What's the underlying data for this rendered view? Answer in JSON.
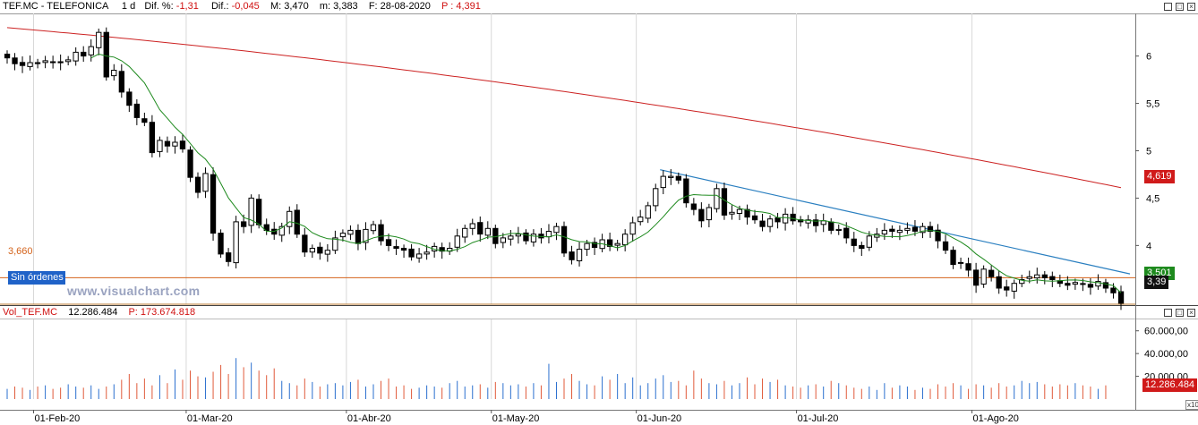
{
  "header": {
    "symbol": "TEF.MC - TELEFONICA",
    "period": "1 d",
    "dif_pct_label": "Dif. %:",
    "dif_pct_value": "-1,31",
    "dif_label": "Dif.:",
    "dif_value": "-0,045",
    "max_label": "M: 3,470",
    "min_label": "m: 3,383",
    "date_label": "F: 28-08-2020",
    "p_label": "P : 4,391"
  },
  "volume_header": {
    "name": "Vol_TEF.MC",
    "value": "12.286.484",
    "p_label": "P: 173.674.818"
  },
  "orders_label": "Sin órdenes",
  "watermark": "www.visualchart.com",
  "level_label": "3,660",
  "price_tags": {
    "ma200": "4,619",
    "ma20": "3,501",
    "last": "3,39",
    "volume": "12.286.484"
  },
  "volume_scale_label": "x10",
  "colors": {
    "ma200": "#cc2222",
    "ma20": "#1e8a1e",
    "trendline": "#2a7fc0",
    "level": "#d4621a",
    "vol_up": "#2a6fcf",
    "vol_down": "#e05a3a"
  },
  "chart_data": [
    {
      "type": "candlestick",
      "title": "TEF.MC - TELEFONICA",
      "ylim": [
        3.38,
        6.45
      ],
      "yticks": [
        "6",
        "5,5",
        "5",
        "4,5",
        "4"
      ],
      "xlabels": [
        "01-Feb-20",
        "01-Mar-20",
        "01-Abr-20",
        "01-May-20",
        "01-Jun-20",
        "01-Jul-20",
        "01-Ago-20"
      ],
      "close": [
        5.98,
        5.92,
        5.9,
        5.93,
        5.92,
        5.95,
        5.94,
        5.93,
        5.96,
        6.04,
        6.0,
        6.1,
        6.25,
        5.78,
        5.85,
        5.62,
        5.48,
        5.35,
        5.3,
        4.98,
        5.11,
        5.05,
        5.09,
        5.02,
        4.72,
        4.56,
        4.76,
        4.13,
        3.91,
        3.83,
        4.25,
        4.2,
        4.5,
        4.22,
        4.16,
        4.12,
        4.2,
        4.36,
        4.12,
        3.93,
        3.97,
        3.92,
        3.95,
        4.08,
        4.13,
        4.16,
        4.02,
        4.17,
        4.22,
        4.05,
        4.0,
        3.97,
        3.95,
        3.88,
        3.91,
        3.93,
        3.99,
        3.94,
        3.97,
        4.1,
        4.18,
        4.23,
        4.12,
        4.18,
        4.02,
        4.08,
        4.1,
        4.12,
        4.05,
        4.12,
        4.08,
        4.15,
        4.2,
        3.92,
        3.85,
        3.96,
        4.02,
        3.98,
        4.06,
        3.99,
        4.02,
        4.12,
        4.24,
        4.3,
        4.42,
        4.6,
        4.73,
        4.73,
        4.69,
        4.45,
        4.38,
        4.26,
        4.4,
        4.6,
        4.32,
        4.35,
        4.38,
        4.3,
        4.27,
        4.2,
        4.28,
        4.25,
        4.33,
        4.26,
        4.25,
        4.27,
        4.21,
        4.26,
        4.16,
        4.17,
        4.08,
        4.0,
        3.97,
        4.1,
        4.12,
        4.16,
        4.15,
        4.16,
        4.18,
        4.15,
        4.2,
        4.15,
        4.05,
        3.95,
        3.8,
        3.82,
        3.74,
        3.58,
        3.75,
        3.67,
        3.55,
        3.53,
        3.6,
        3.64,
        3.67,
        3.69,
        3.66,
        3.64,
        3.6,
        3.58,
        3.61,
        3.59,
        3.56,
        3.62,
        3.55,
        3.5,
        3.39
      ],
      "ma20_last": 3.501,
      "ma200_last": 4.619,
      "support_level": 3.66,
      "last_price": 3.39
    },
    {
      "type": "bar",
      "title": "Vol_TEF.MC",
      "ylim": [
        0,
        70000000
      ],
      "yticks": [
        "60.000,00",
        "40.000,00",
        "20.000,00"
      ],
      "last_value": 12286484,
      "values": [
        9,
        11,
        10,
        8,
        11,
        12,
        9,
        10,
        13,
        11,
        10,
        12,
        9,
        11,
        13,
        17,
        22,
        14,
        18,
        12,
        21,
        14,
        26,
        17,
        25,
        20,
        19,
        24,
        30,
        22,
        36,
        28,
        32,
        25,
        21,
        27,
        16,
        14,
        12,
        18,
        15,
        11,
        13,
        14,
        12,
        15,
        17,
        11,
        13,
        16,
        18,
        11,
        12,
        9,
        10,
        12,
        11,
        10,
        14,
        16,
        11,
        12,
        13,
        10,
        15,
        14,
        12,
        13,
        11,
        14,
        12,
        31,
        15,
        18,
        22,
        16,
        13,
        12,
        20,
        17,
        22,
        14,
        19,
        12,
        14,
        18,
        21,
        15,
        16,
        12,
        25,
        18,
        14,
        13,
        16,
        12,
        14,
        19,
        13,
        18,
        15,
        17,
        12,
        11,
        10,
        12,
        13,
        11,
        16,
        14,
        12,
        10,
        9,
        11,
        8,
        14,
        10,
        12,
        11,
        8,
        10,
        9,
        13,
        11,
        14,
        12,
        9,
        13,
        12,
        10,
        14,
        11,
        12,
        16,
        14,
        15,
        13,
        11,
        13,
        12,
        14,
        12,
        11,
        9,
        12
      ]
    }
  ]
}
